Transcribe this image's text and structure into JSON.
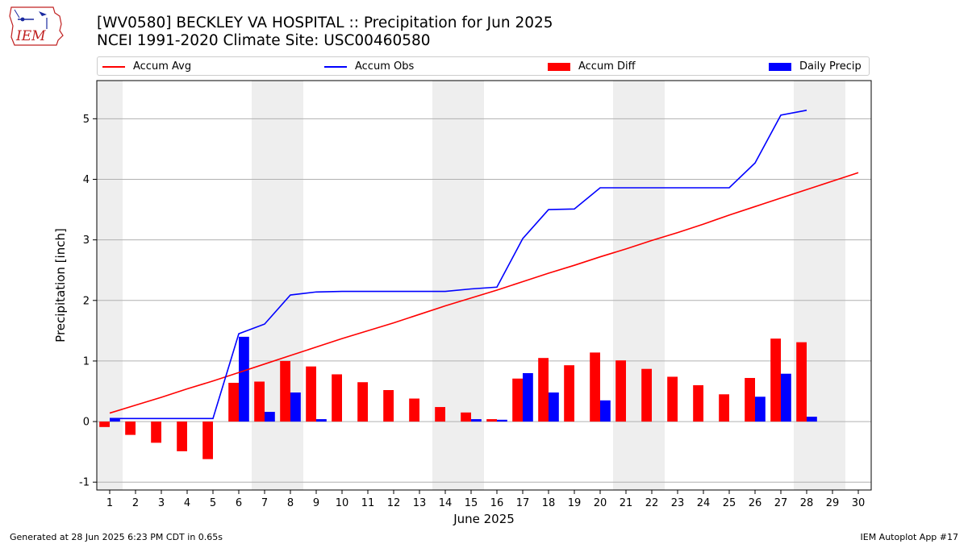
{
  "header": {
    "title_line1": "[WV0580] BECKLEY VA HOSPITAL :: Precipitation for Jun 2025",
    "title_line2": "NCEI 1991-2020 Climate Site: USC00460580",
    "logo_text": "IEM"
  },
  "footer": {
    "left": "Generated at 28 Jun 2025 6:23 PM CDT in 0.65s",
    "right": "IEM Autoplot App #17"
  },
  "colors": {
    "avg": "#ff0000",
    "obs": "#0000ff",
    "diff": "#ff0000",
    "daily": "#0000ff",
    "weekend_shade": "#eeeeee",
    "grid": "#b0b0b0"
  },
  "chart_data": {
    "type": "bar",
    "xlabel": "June 2025",
    "ylabel": "Precipitation [inch]",
    "xlim": [
      0.5,
      30.5
    ],
    "ylim": [
      -1.13,
      5.63
    ],
    "y_ticks": [
      -1,
      0,
      1,
      2,
      3,
      4,
      5
    ],
    "x_ticks": [
      1,
      2,
      3,
      4,
      5,
      6,
      7,
      8,
      9,
      10,
      11,
      12,
      13,
      14,
      15,
      16,
      17,
      18,
      19,
      20,
      21,
      22,
      23,
      24,
      25,
      26,
      27,
      28,
      29,
      30
    ],
    "grid": "horizontal",
    "legend_position": "top",
    "shaded_weekend_days": [
      1,
      7,
      8,
      14,
      15,
      21,
      22,
      28,
      29
    ],
    "legend": [
      "Accum Avg",
      "Accum Obs",
      "Accum Diff",
      "Daily Precip"
    ],
    "series": [
      {
        "name": "Accum Avg",
        "kind": "line",
        "x": [
          1,
          2,
          3,
          4,
          5,
          6,
          7,
          8,
          9,
          10,
          11,
          12,
          13,
          14,
          15,
          16,
          17,
          18,
          19,
          20,
          21,
          22,
          23,
          24,
          25,
          26,
          27,
          28,
          29,
          30
        ],
        "values": [
          0.14,
          0.27,
          0.4,
          0.54,
          0.67,
          0.81,
          0.95,
          1.09,
          1.23,
          1.37,
          1.5,
          1.63,
          1.77,
          1.91,
          2.04,
          2.17,
          2.31,
          2.45,
          2.58,
          2.72,
          2.85,
          2.99,
          3.12,
          3.26,
          3.41,
          3.55,
          3.69,
          3.83,
          3.97,
          4.11
        ]
      },
      {
        "name": "Accum Obs",
        "kind": "line",
        "x": [
          1,
          2,
          3,
          4,
          5,
          6,
          7,
          8,
          9,
          10,
          11,
          12,
          13,
          14,
          15,
          16,
          17,
          18,
          19,
          20,
          21,
          22,
          23,
          24,
          25,
          26,
          27,
          28
        ],
        "values": [
          0.05,
          0.05,
          0.05,
          0.05,
          0.05,
          1.45,
          1.61,
          2.09,
          2.14,
          2.15,
          2.15,
          2.15,
          2.15,
          2.15,
          2.19,
          2.22,
          3.02,
          3.5,
          3.51,
          3.86,
          3.86,
          3.86,
          3.86,
          3.86,
          3.86,
          4.27,
          5.06,
          5.14
        ]
      },
      {
        "name": "Accum Diff",
        "kind": "bar",
        "x": [
          1,
          2,
          3,
          4,
          5,
          6,
          7,
          8,
          9,
          10,
          11,
          12,
          13,
          14,
          15,
          16,
          17,
          18,
          19,
          20,
          21,
          22,
          23,
          24,
          25,
          26,
          27,
          28
        ],
        "values": [
          -0.09,
          -0.22,
          -0.35,
          -0.49,
          -0.62,
          0.64,
          0.66,
          1.0,
          0.91,
          0.78,
          0.65,
          0.52,
          0.38,
          0.24,
          0.15,
          0.04,
          0.71,
          1.05,
          0.93,
          1.14,
          1.01,
          0.87,
          0.74,
          0.6,
          0.45,
          0.72,
          1.37,
          1.31
        ]
      },
      {
        "name": "Daily Precip",
        "kind": "bar",
        "x": [
          1,
          2,
          3,
          4,
          5,
          6,
          7,
          8,
          9,
          10,
          11,
          12,
          13,
          14,
          15,
          16,
          17,
          18,
          19,
          20,
          21,
          22,
          23,
          24,
          25,
          26,
          27,
          28
        ],
        "values": [
          0.05,
          0,
          0,
          0,
          0,
          1.4,
          0.16,
          0.48,
          0.04,
          0,
          0,
          0,
          0,
          0,
          0.04,
          0.03,
          0.8,
          0.48,
          0,
          0.35,
          0,
          0,
          0,
          0,
          0,
          0.41,
          0.79,
          0.08
        ]
      }
    ]
  }
}
